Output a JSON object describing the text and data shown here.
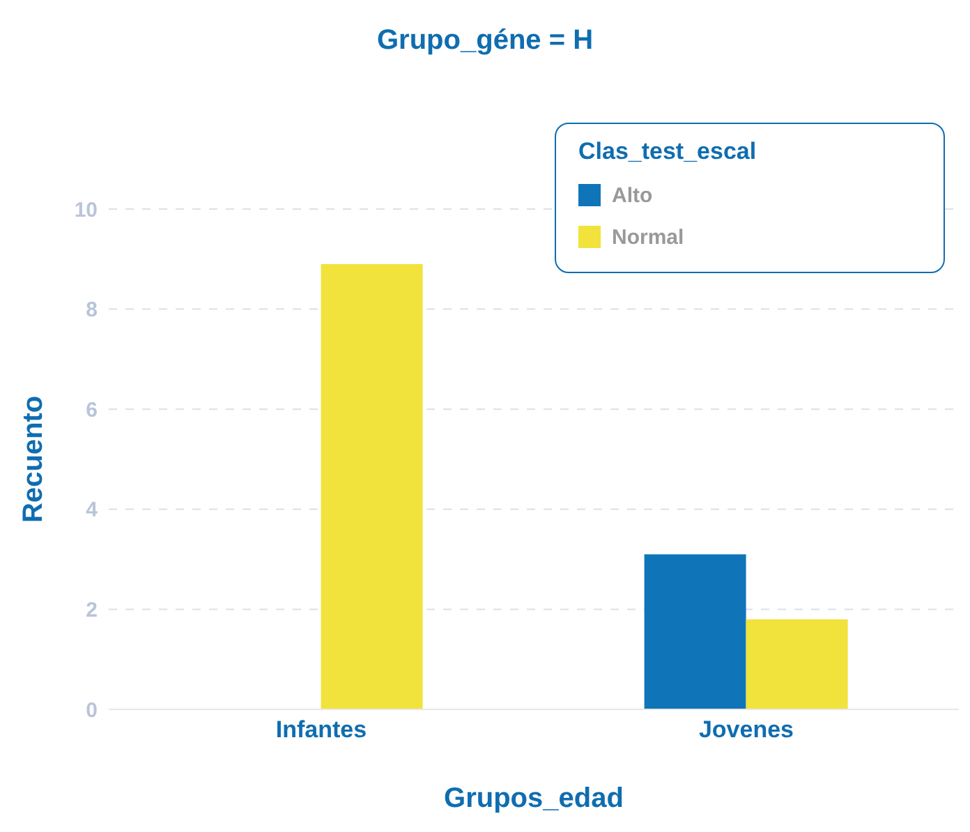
{
  "chart_data": {
    "type": "bar",
    "title": "Grupo_géne = H",
    "xlabel": "Grupos_edad",
    "ylabel": "Recuento",
    "legend_title": "Clas_test_escal",
    "categories": [
      "Infantes",
      "Jovenes"
    ],
    "series": [
      {
        "name": "Alto",
        "color": "#0f75b8",
        "values": [
          null,
          3.1
        ]
      },
      {
        "name": "Normal",
        "color": "#f2e23c",
        "values": [
          8.9,
          1.8
        ]
      }
    ],
    "ylim": [
      0,
      10
    ],
    "yticks": [
      0,
      2,
      4,
      6,
      8,
      10
    ],
    "grid": "y",
    "legend": "top right"
  }
}
